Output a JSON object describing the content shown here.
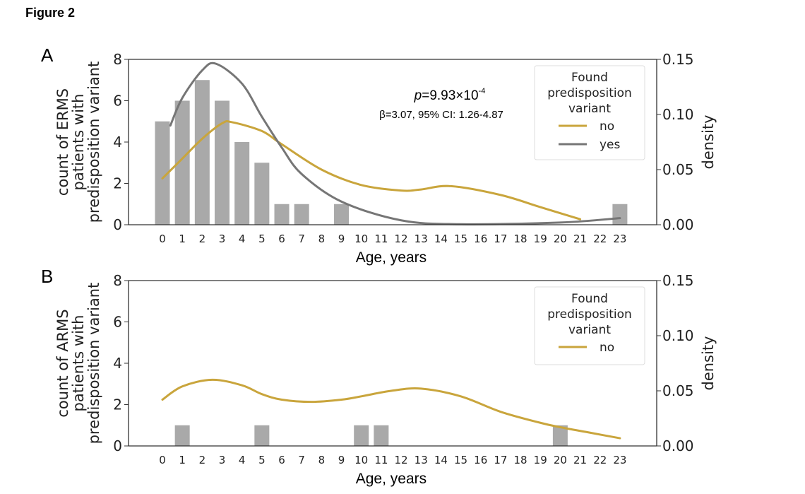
{
  "figure_title": "Figure 2",
  "colors": {
    "bar": "#a9a9a9",
    "no": "#c9a53c",
    "yes": "#767676"
  },
  "chart_data": [
    {
      "panel": "A",
      "type": "bar+line",
      "xlabel": "Age, years",
      "ylabel": "count of ERMS patients with predisposition variant",
      "ylabel_lines": [
        "count of ERMS",
        "patients with",
        "predisposition variant"
      ],
      "y2label": "density",
      "categories": [
        0,
        1,
        2,
        3,
        4,
        5,
        6,
        7,
        8,
        9,
        10,
        11,
        12,
        13,
        14,
        15,
        16,
        17,
        18,
        19,
        20,
        21,
        22,
        23
      ],
      "values": [
        5,
        6,
        7,
        6,
        4,
        3,
        1,
        1,
        0,
        1,
        0,
        0,
        0,
        0,
        0,
        0,
        0,
        0,
        0,
        0,
        0,
        0,
        0,
        1
      ],
      "ylim": [
        0,
        8
      ],
      "yticks": [
        0,
        2,
        4,
        6,
        8
      ],
      "y2lim": [
        0,
        0.15
      ],
      "y2ticks": [
        "0.00",
        "0.05",
        "0.10",
        "0.15"
      ],
      "legend": {
        "title_lines": [
          "Found",
          "predisposition",
          "variant"
        ],
        "placement": "top-right"
      },
      "series": [
        {
          "name": "no",
          "x": [
            0,
            1,
            2,
            3,
            3.5,
            5,
            6,
            8,
            10,
            12,
            13,
            14.5,
            17,
            19,
            21
          ],
          "y": [
            0.042,
            0.06,
            0.078,
            0.092,
            0.093,
            0.085,
            0.073,
            0.05,
            0.036,
            0.031,
            0.032,
            0.035,
            0.027,
            0.016,
            0.005
          ]
        },
        {
          "name": "yes",
          "x": [
            0.4,
            1,
            2,
            2.7,
            4,
            5,
            6,
            7,
            9,
            12,
            15,
            20,
            23
          ],
          "y": [
            0.09,
            0.115,
            0.14,
            0.146,
            0.128,
            0.098,
            0.07,
            0.046,
            0.021,
            0.004,
            0.0005,
            0.002,
            0.006
          ]
        }
      ],
      "annotation": {
        "p": "p",
        "p_value": "=9.93×10",
        "p_exp": "-4",
        "beta": "β=3.07, 95% CI: 1.26-4.87"
      }
    },
    {
      "panel": "B",
      "type": "bar+line",
      "xlabel": "Age, years",
      "ylabel": "count of ARMS patients with predisposition variant",
      "ylabel_lines": [
        "count of ARMS",
        "patients with",
        "predisposition variant"
      ],
      "y2label": "density",
      "categories": [
        0,
        1,
        2,
        3,
        4,
        5,
        6,
        7,
        8,
        9,
        10,
        11,
        12,
        13,
        14,
        15,
        16,
        17,
        18,
        19,
        20,
        21,
        22,
        23
      ],
      "values": [
        0,
        1,
        0,
        0,
        0,
        1,
        0,
        0,
        0,
        0,
        1,
        1,
        0,
        0,
        0,
        0,
        0,
        0,
        0,
        0,
        1,
        0,
        0,
        0
      ],
      "ylim": [
        0,
        8
      ],
      "yticks": [
        0,
        2,
        4,
        6,
        8
      ],
      "y2lim": [
        0,
        0.15
      ],
      "y2ticks": [
        "0.00",
        "0.05",
        "0.10",
        "0.15"
      ],
      "legend": {
        "title_lines": [
          "Found",
          "predisposition",
          "variant"
        ],
        "placement": "top-right"
      },
      "series": [
        {
          "name": "no",
          "x": [
            0,
            1,
            2.5,
            4,
            5,
            6,
            7.5,
            9,
            10,
            11.5,
            13,
            15,
            17,
            19,
            20,
            21.5,
            23
          ],
          "y": [
            0.042,
            0.054,
            0.06,
            0.055,
            0.047,
            0.042,
            0.04,
            0.042,
            0.045,
            0.05,
            0.052,
            0.045,
            0.031,
            0.021,
            0.017,
            0.012,
            0.007
          ]
        }
      ]
    }
  ]
}
